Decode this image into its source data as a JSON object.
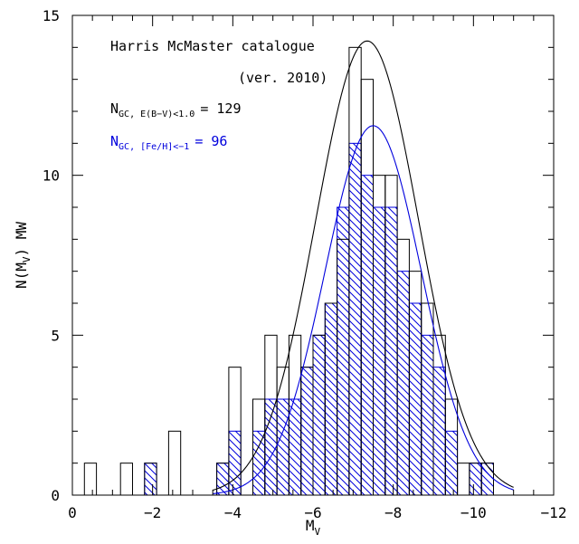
{
  "chart_data": {
    "type": "histogram",
    "xlabel": "M",
    "xlabel_sub": "V",
    "ylabel": "N(M",
    "ylabel_sub": "V",
    "ylabel_suffix": ") MW",
    "xlim": [
      0,
      -12
    ],
    "ylim": [
      0,
      15
    ],
    "x_ticks": [
      0,
      -2,
      -4,
      -6,
      -8,
      -10,
      -12
    ],
    "x_tick_labels": [
      "0",
      "−2",
      "−4",
      "−6",
      "−8",
      "−10",
      "−12"
    ],
    "y_ticks": [
      0,
      5,
      10,
      15
    ],
    "y_tick_labels": [
      "0",
      "5",
      "10",
      "15"
    ],
    "bin_width": 0.3,
    "colors": {
      "all": "#000000",
      "metal_poor": "#0000dd"
    },
    "annotations": {
      "catalogue": "Harris McMaster catalogue",
      "version": "(ver. 2010)",
      "n_all_main": "N",
      "n_all_sub": "GC, E(B−V)<1.0",
      "n_all_value": "= 129",
      "n_mp_main": "N",
      "n_mp_sub": "GC, [Fe/H]<−1",
      "n_mp_value": "= 96"
    },
    "series": [
      {
        "name": "N_GC, E(B−V)<1.0",
        "color": "#000000",
        "fill": "none",
        "bin_left": [
          -0.3,
          -1.2,
          -1.8,
          -2.4,
          -3.6,
          -3.9,
          -4.5,
          -4.8,
          -5.1,
          -5.4,
          -5.7,
          -6.0,
          -6.3,
          -6.6,
          -6.9,
          -7.2,
          -7.5,
          -7.8,
          -8.1,
          -8.4,
          -8.7,
          -9.0,
          -9.3,
          -9.6,
          -9.9,
          -10.2
        ],
        "counts": [
          1,
          1,
          1,
          2,
          1,
          4,
          3,
          5,
          4,
          5,
          4,
          5,
          6,
          8,
          14,
          13,
          10,
          10,
          8,
          7,
          6,
          5,
          3,
          1,
          1,
          1
        ]
      },
      {
        "name": "N_GC, [Fe/H]<−1",
        "color": "#0000dd",
        "fill": "hatched",
        "bin_left": [
          -1.8,
          -3.6,
          -3.9,
          -4.5,
          -4.8,
          -5.1,
          -5.4,
          -5.7,
          -6.0,
          -6.3,
          -6.6,
          -6.9,
          -7.2,
          -7.5,
          -7.8,
          -8.1,
          -8.4,
          -8.7,
          -9.0,
          -9.3,
          -9.9,
          -10.2
        ],
        "counts": [
          1,
          1,
          2,
          2,
          3,
          3,
          3,
          4,
          5,
          6,
          9,
          11,
          10,
          9,
          9,
          7,
          6,
          5,
          4,
          2,
          1,
          1
        ]
      }
    ],
    "gaussian_fits": [
      {
        "series": "N_GC, E(B−V)<1.0",
        "color": "#000000",
        "mean": -7.35,
        "sigma": 1.28,
        "peak": 14.2,
        "x_range": [
          -3.5,
          -11.0
        ]
      },
      {
        "series": "N_GC, [Fe/H]<−1",
        "color": "#0000dd",
        "mean": -7.5,
        "sigma": 1.2,
        "peak": 11.55,
        "x_range": [
          -3.5,
          -11.0
        ]
      }
    ]
  }
}
